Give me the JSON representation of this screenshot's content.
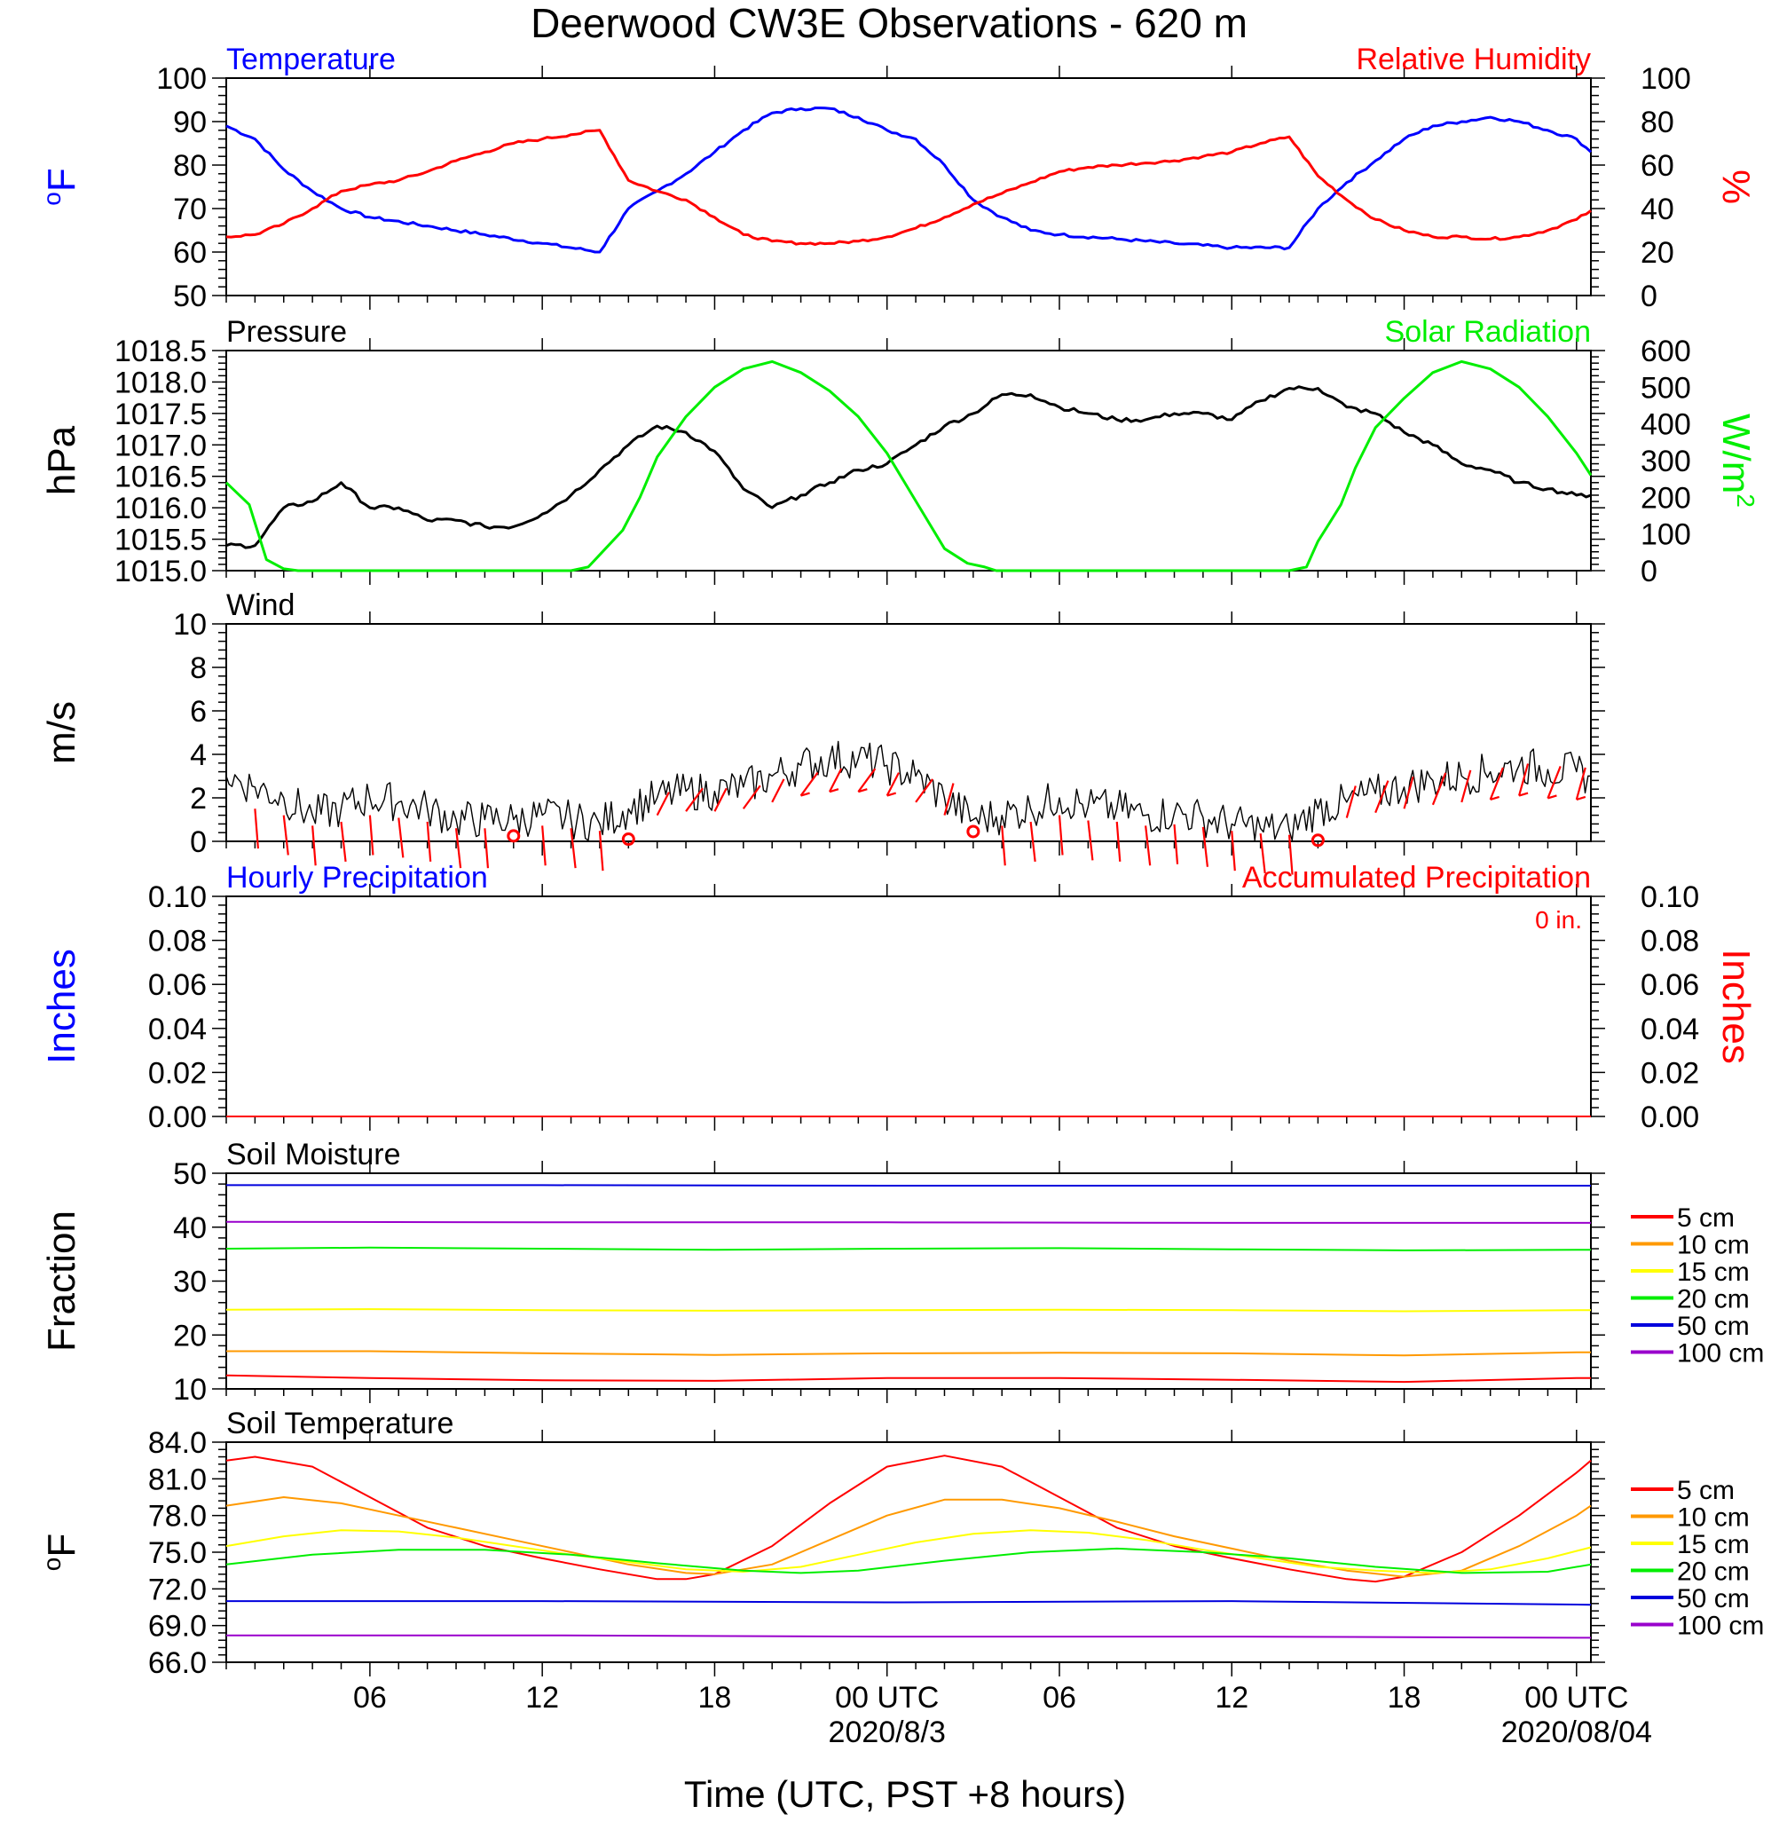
{
  "title": "Deerwood CW3E Observations - 620 m",
  "x_axis": {
    "label": "Time (UTC, PST +8 hours)",
    "tick_labels": [
      "06",
      "12",
      "18",
      "00 UTC",
      "06",
      "12",
      "18",
      "00 UTC"
    ],
    "tick_hours": [
      6,
      12,
      18,
      24,
      30,
      36,
      42,
      48
    ],
    "date_labels": [
      "2020/8/3",
      "2020/08/04"
    ],
    "date_hours": [
      24,
      48
    ],
    "range_hours": [
      1,
      48.5
    ]
  },
  "colors": {
    "temperature": "#0000ff",
    "humidity": "#ff0000",
    "pressure": "#000000",
    "solar": "#00ee00",
    "wind": "#000000",
    "barbs": "#ff0000",
    "d5": "#ff0000",
    "d10": "#ff9900",
    "d15": "#ffff00",
    "d20": "#00ee00",
    "d50": "#0000dd",
    "d100": "#9900cc"
  },
  "chart_data": [
    {
      "id": "temp_rh",
      "type": "line",
      "left_title": "Temperature",
      "right_title": "Relative Humidity",
      "ylabel_left": "oF",
      "ylabel_right": "%",
      "ylim_left": [
        50,
        100
      ],
      "ylim_right": [
        0,
        100
      ],
      "yticks_left": [
        "50",
        "60",
        "70",
        "80",
        "90",
        "100"
      ],
      "yticks_right": [
        "0",
        "20",
        "40",
        "60",
        "80",
        "100"
      ],
      "series": [
        {
          "name": "Temperature",
          "axis": "left",
          "x": [
            1,
            2,
            3,
            4,
            5,
            6,
            8,
            10,
            12,
            14,
            15,
            16,
            17,
            18,
            19,
            20,
            21,
            22,
            23,
            24,
            25,
            26,
            27,
            28,
            29,
            30,
            32,
            34,
            36,
            38,
            39,
            40,
            41,
            42,
            43,
            44,
            45,
            46,
            47,
            48,
            48.5
          ],
          "y": [
            89,
            86,
            79,
            74,
            70,
            68,
            66,
            64,
            62,
            60,
            70,
            74,
            78,
            83,
            88,
            92,
            93,
            93,
            91,
            88,
            86,
            80,
            72,
            68,
            65,
            64,
            63,
            62,
            61,
            61,
            70,
            76,
            81,
            86,
            89,
            90,
            91,
            90,
            88,
            86,
            83
          ]
        },
        {
          "name": "Relative Humidity",
          "axis": "right",
          "x": [
            1,
            2,
            3,
            4,
            5,
            6,
            7,
            8,
            9,
            10,
            11,
            12,
            13,
            14,
            15,
            16,
            17,
            18,
            19,
            20,
            21,
            22,
            23,
            24,
            25,
            26,
            27,
            28,
            29,
            30,
            31,
            32,
            33,
            34,
            35,
            36,
            37,
            38,
            39,
            40,
            41,
            42,
            43,
            44,
            45,
            46,
            47,
            48,
            48.5
          ],
          "y": [
            27,
            28,
            33,
            40,
            48,
            51,
            53,
            57,
            62,
            66,
            70,
            72,
            74,
            76,
            53,
            48,
            44,
            36,
            28,
            25,
            24,
            24,
            25,
            27,
            31,
            36,
            42,
            47,
            52,
            57,
            59,
            60,
            61,
            62,
            64,
            66,
            70,
            73,
            55,
            44,
            35,
            30,
            27,
            27,
            26,
            27,
            30,
            35,
            39
          ]
        }
      ]
    },
    {
      "id": "pressure_solar",
      "type": "line",
      "left_title": "Pressure",
      "right_title": "Solar Radiation",
      "ylabel_left": "hPa",
      "ylabel_right": "W/m2",
      "ylim_left": [
        1015.0,
        1018.5
      ],
      "ylim_right": [
        0,
        600
      ],
      "yticks_left": [
        "1015.0",
        "1015.5",
        "1016.0",
        "1016.5",
        "1017.0",
        "1017.5",
        "1018.0",
        "1018.5"
      ],
      "yticks_right": [
        "0",
        "100",
        "200",
        "300",
        "400",
        "500",
        "600"
      ],
      "series": [
        {
          "name": "Pressure",
          "axis": "left",
          "x": [
            1,
            2,
            3,
            4,
            5,
            6,
            7,
            8,
            9,
            10,
            11,
            12,
            13,
            14,
            15,
            16,
            17,
            18,
            19,
            20,
            21,
            22,
            23,
            24,
            25,
            26,
            27,
            28,
            29,
            30,
            31,
            32,
            33,
            34,
            35,
            36,
            37,
            38,
            39,
            40,
            41,
            42,
            43,
            44,
            45,
            46,
            47,
            48,
            48.5
          ],
          "y": [
            1015.4,
            1015.4,
            1016.0,
            1016.1,
            1016.4,
            1016.0,
            1016.0,
            1015.8,
            1015.8,
            1015.7,
            1015.7,
            1015.9,
            1016.2,
            1016.6,
            1017.0,
            1017.3,
            1017.2,
            1016.9,
            1016.3,
            1016.0,
            1016.2,
            1016.4,
            1016.6,
            1016.7,
            1017.0,
            1017.3,
            1017.5,
            1017.8,
            1017.8,
            1017.6,
            1017.5,
            1017.4,
            1017.4,
            1017.5,
            1017.5,
            1017.4,
            1017.7,
            1017.9,
            1017.9,
            1017.6,
            1017.5,
            1017.2,
            1017.0,
            1016.7,
            1016.6,
            1016.4,
            1016.3,
            1016.2,
            1016.2
          ]
        },
        {
          "name": "Solar Radiation",
          "axis": "right",
          "x": [
            1,
            1.8,
            2.4,
            3,
            3.5,
            13,
            13.6,
            14.2,
            14.8,
            15.4,
            16,
            17,
            18,
            19,
            20,
            21,
            22,
            23,
            24,
            25,
            26,
            26.8,
            27.4,
            27.8,
            28,
            38,
            38.6,
            39,
            39.4,
            39.8,
            40.3,
            41,
            42,
            43,
            44,
            45,
            46,
            47,
            48,
            48.5
          ],
          "y": [
            240,
            180,
            30,
            5,
            0,
            0,
            10,
            60,
            110,
            200,
            310,
            420,
            500,
            550,
            570,
            540,
            490,
            420,
            320,
            190,
            60,
            20,
            10,
            0,
            0,
            0,
            10,
            80,
            130,
            180,
            280,
            390,
            470,
            540,
            570,
            550,
            500,
            420,
            320,
            260
          ]
        }
      ]
    },
    {
      "id": "wind",
      "type": "line",
      "left_title": "Wind",
      "ylabel_left": "m/s",
      "ylim_left": [
        0,
        10
      ],
      "yticks_left": [
        "0",
        "2",
        "4",
        "6",
        "8",
        "10"
      ],
      "series": [
        {
          "name": "Wind",
          "axis": "left",
          "x": [
            1,
            2,
            3,
            4,
            5,
            6,
            7,
            8,
            9,
            10,
            11,
            12,
            13,
            14,
            15,
            16,
            17,
            18,
            19,
            20,
            21,
            22,
            23,
            24,
            25,
            26,
            27,
            28,
            29,
            30,
            31,
            32,
            33,
            34,
            35,
            36,
            37,
            38,
            39,
            40,
            41,
            42,
            43,
            44,
            45,
            46,
            47,
            48,
            48.5
          ],
          "y": [
            3,
            2.5,
            2,
            1.2,
            1.5,
            2,
            1.8,
            1.5,
            1,
            1,
            1,
            1.2,
            1,
            0.8,
            1.5,
            2,
            2.3,
            2.3,
            2.5,
            3,
            3.5,
            3.8,
            3.8,
            3.5,
            3,
            2,
            1,
            1.2,
            1.5,
            2,
            1.6,
            1.5,
            1.2,
            1.3,
            1.1,
            0.8,
            0.6,
            0.5,
            1.5,
            1.8,
            2.2,
            2.5,
            2.8,
            3,
            3.2,
            3.5,
            3.3,
            3.2,
            3
          ]
        },
        {
          "name": "Calm",
          "axis": "left",
          "markers": "circle",
          "x": [
            11,
            15,
            27,
            39
          ],
          "y": [
            0.25,
            0.1,
            0.45,
            0.05
          ]
        }
      ]
    },
    {
      "id": "precip",
      "type": "line",
      "left_title": "Hourly Precipitation",
      "right_title": "Accumulated Precipitation",
      "annotation": "0 in.",
      "ylabel_left": "Inches",
      "ylabel_right": "Inches",
      "ylim_left": [
        0,
        0.1
      ],
      "ylim_right": [
        0,
        0.1
      ],
      "yticks_left": [
        "0.00",
        "0.02",
        "0.04",
        "0.06",
        "0.08",
        "0.10"
      ],
      "yticks_right": [
        "0.00",
        "0.02",
        "0.04",
        "0.06",
        "0.08",
        "0.10"
      ],
      "series": [
        {
          "name": "Hourly Precipitation",
          "axis": "left",
          "x": [
            1,
            48.5
          ],
          "y": [
            0,
            0
          ]
        },
        {
          "name": "Accumulated Precipitation",
          "axis": "left",
          "x": [
            1,
            48.5
          ],
          "y": [
            0,
            0
          ]
        }
      ]
    },
    {
      "id": "soil_moisture",
      "type": "line",
      "left_title": "Soil Moisture",
      "ylabel_left": "Fraction",
      "ylim_left": [
        10,
        50
      ],
      "yticks_left": [
        "10",
        "20",
        "30",
        "40",
        "50"
      ],
      "legend_position": "right",
      "series": [
        {
          "name": "5 cm",
          "axis": "left",
          "x": [
            1,
            6,
            12,
            18,
            24,
            30,
            36,
            42,
            48,
            48.5
          ],
          "y": [
            12.5,
            12,
            11.6,
            11.5,
            12,
            12,
            11.7,
            11.3,
            12,
            12
          ]
        },
        {
          "name": "10 cm",
          "axis": "left",
          "x": [
            1,
            6,
            12,
            18,
            24,
            30,
            36,
            42,
            48,
            48.5
          ],
          "y": [
            17,
            17,
            16.6,
            16.3,
            16.6,
            16.7,
            16.6,
            16.2,
            16.8,
            16.8
          ]
        },
        {
          "name": "15 cm",
          "axis": "left",
          "x": [
            1,
            6,
            12,
            18,
            24,
            30,
            36,
            42,
            48,
            48.5
          ],
          "y": [
            24.7,
            24.8,
            24.6,
            24.5,
            24.6,
            24.7,
            24.6,
            24.4,
            24.6,
            24.6
          ]
        },
        {
          "name": "20 cm",
          "axis": "left",
          "x": [
            1,
            6,
            12,
            18,
            24,
            30,
            36,
            42,
            48,
            48.5
          ],
          "y": [
            36,
            36.2,
            36,
            35.8,
            36,
            36.1,
            35.9,
            35.7,
            35.8,
            35.8
          ]
        },
        {
          "name": "50 cm",
          "axis": "left",
          "x": [
            1,
            12,
            24,
            36,
            48.5
          ],
          "y": [
            47.8,
            47.8,
            47.7,
            47.7,
            47.7
          ]
        },
        {
          "name": "100 cm",
          "axis": "left",
          "x": [
            1,
            12,
            24,
            36,
            48.5
          ],
          "y": [
            41,
            40.9,
            40.9,
            40.8,
            40.8
          ]
        }
      ]
    },
    {
      "id": "soil_temp",
      "type": "line",
      "left_title": "Soil Temperature",
      "ylabel_left": "oF",
      "ylim_left": [
        66,
        84
      ],
      "yticks_left": [
        "66.0",
        "69.0",
        "72.0",
        "75.0",
        "78.0",
        "81.0",
        "84.0"
      ],
      "legend_position": "right",
      "series": [
        {
          "name": "5 cm",
          "axis": "left",
          "x": [
            1,
            2,
            4,
            6,
            8,
            10,
            12,
            14,
            16,
            17,
            18,
            20,
            22,
            24,
            26,
            28,
            30,
            32,
            34,
            36,
            38,
            40,
            41,
            42,
            44,
            46,
            48,
            48.5
          ],
          "y": [
            82.5,
            82.8,
            82,
            79.5,
            77,
            75.5,
            74.5,
            73.6,
            72.8,
            72.8,
            73.2,
            75.5,
            79,
            82,
            82.9,
            82,
            79.5,
            77,
            75.5,
            74.5,
            73.6,
            72.8,
            72.6,
            73,
            75,
            78,
            81.5,
            82.5
          ]
        },
        {
          "name": "10 cm",
          "axis": "left",
          "x": [
            1,
            3,
            5,
            7,
            9,
            11,
            13,
            15,
            17,
            18,
            20,
            22,
            24,
            26,
            28,
            30,
            32,
            34,
            36,
            38,
            40,
            42,
            44,
            46,
            48,
            48.5
          ],
          "y": [
            78.8,
            79.5,
            79,
            78,
            77,
            76,
            75,
            74,
            73.3,
            73.2,
            74,
            76,
            78,
            79.3,
            79.3,
            78.6,
            77.5,
            76.3,
            75.3,
            74.3,
            73.5,
            73,
            73.5,
            75.5,
            78,
            78.8
          ]
        },
        {
          "name": "15 cm",
          "axis": "left",
          "x": [
            1,
            3,
            5,
            7,
            9,
            11,
            13,
            15,
            17,
            19,
            21,
            23,
            25,
            27,
            29,
            31,
            33,
            35,
            37,
            39,
            41,
            43,
            45,
            47,
            48.5
          ],
          "y": [
            75.5,
            76.3,
            76.8,
            76.7,
            76.2,
            75.5,
            74.8,
            74.2,
            73.6,
            73.4,
            73.8,
            74.8,
            75.8,
            76.5,
            76.8,
            76.6,
            76,
            75.2,
            74.5,
            73.8,
            73.5,
            73.3,
            73.6,
            74.5,
            75.4
          ]
        },
        {
          "name": "20 cm",
          "axis": "left",
          "x": [
            1,
            4,
            7,
            10,
            13,
            16,
            19,
            21,
            23,
            26,
            29,
            32,
            35,
            38,
            41,
            44,
            47,
            48.5
          ],
          "y": [
            74,
            74.8,
            75.2,
            75.2,
            74.8,
            74.1,
            73.5,
            73.3,
            73.5,
            74.3,
            75,
            75.3,
            75,
            74.5,
            73.8,
            73.3,
            73.4,
            74
          ]
        },
        {
          "name": "50 cm",
          "axis": "left",
          "x": [
            1,
            12,
            24,
            36,
            48.5
          ],
          "y": [
            71,
            71,
            70.9,
            71,
            70.7
          ]
        },
        {
          "name": "100 cm",
          "axis": "left",
          "x": [
            1,
            12,
            24,
            36,
            48.5
          ],
          "y": [
            68.2,
            68.2,
            68.1,
            68.1,
            68
          ]
        }
      ]
    }
  ]
}
